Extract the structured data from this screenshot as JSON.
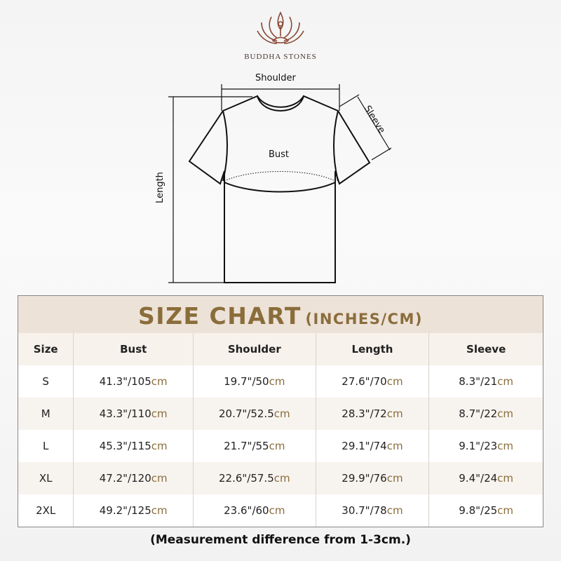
{
  "brand": {
    "name": "BUDDHA STONES",
    "color": "#8a4a36"
  },
  "diagram": {
    "shoulder": "Shoulder",
    "sleeve": "Sleeve",
    "bust": "Bust",
    "length": "Length"
  },
  "chart": {
    "title": "SIZE CHART",
    "subtitle": "(INCHES/CM)",
    "accent": "#8a6d3b",
    "headers": [
      "Size",
      "Bust",
      "Shoulder",
      "Length",
      "Sleeve"
    ],
    "rows": [
      {
        "size": "S",
        "bust": {
          "in": "41.3\"/105",
          "unit": "cm"
        },
        "shoulder": {
          "in": "19.7\"/50",
          "unit": "cm"
        },
        "length": {
          "in": "27.6\"/70",
          "unit": "cm"
        },
        "sleeve": {
          "in": "8.3\"/21",
          "unit": "cm"
        }
      },
      {
        "size": "M",
        "bust": {
          "in": "43.3\"/110",
          "unit": "cm"
        },
        "shoulder": {
          "in": "20.7\"/52.5",
          "unit": "cm"
        },
        "length": {
          "in": "28.3\"/72",
          "unit": "cm"
        },
        "sleeve": {
          "in": "8.7\"/22",
          "unit": "cm"
        }
      },
      {
        "size": "L",
        "bust": {
          "in": "45.3\"/115",
          "unit": "cm"
        },
        "shoulder": {
          "in": "21.7\"/55",
          "unit": "cm"
        },
        "length": {
          "in": "29.1\"/74",
          "unit": "cm"
        },
        "sleeve": {
          "in": "9.1\"/23",
          "unit": "cm"
        }
      },
      {
        "size": "XL",
        "bust": {
          "in": "47.2\"/120",
          "unit": "cm"
        },
        "shoulder": {
          "in": "22.6\"/57.5",
          "unit": "cm"
        },
        "length": {
          "in": "29.9\"/76",
          "unit": "cm"
        },
        "sleeve": {
          "in": "9.4\"/24",
          "unit": "cm"
        }
      },
      {
        "size": "2XL",
        "bust": {
          "in": "49.2\"/125",
          "unit": "cm"
        },
        "shoulder": {
          "in": "23.6\"/60",
          "unit": "cm"
        },
        "length": {
          "in": "30.7\"/78",
          "unit": "cm"
        },
        "sleeve": {
          "in": "9.8\"/25",
          "unit": "cm"
        }
      }
    ]
  },
  "note": "(Measurement difference from 1-3cm.)"
}
